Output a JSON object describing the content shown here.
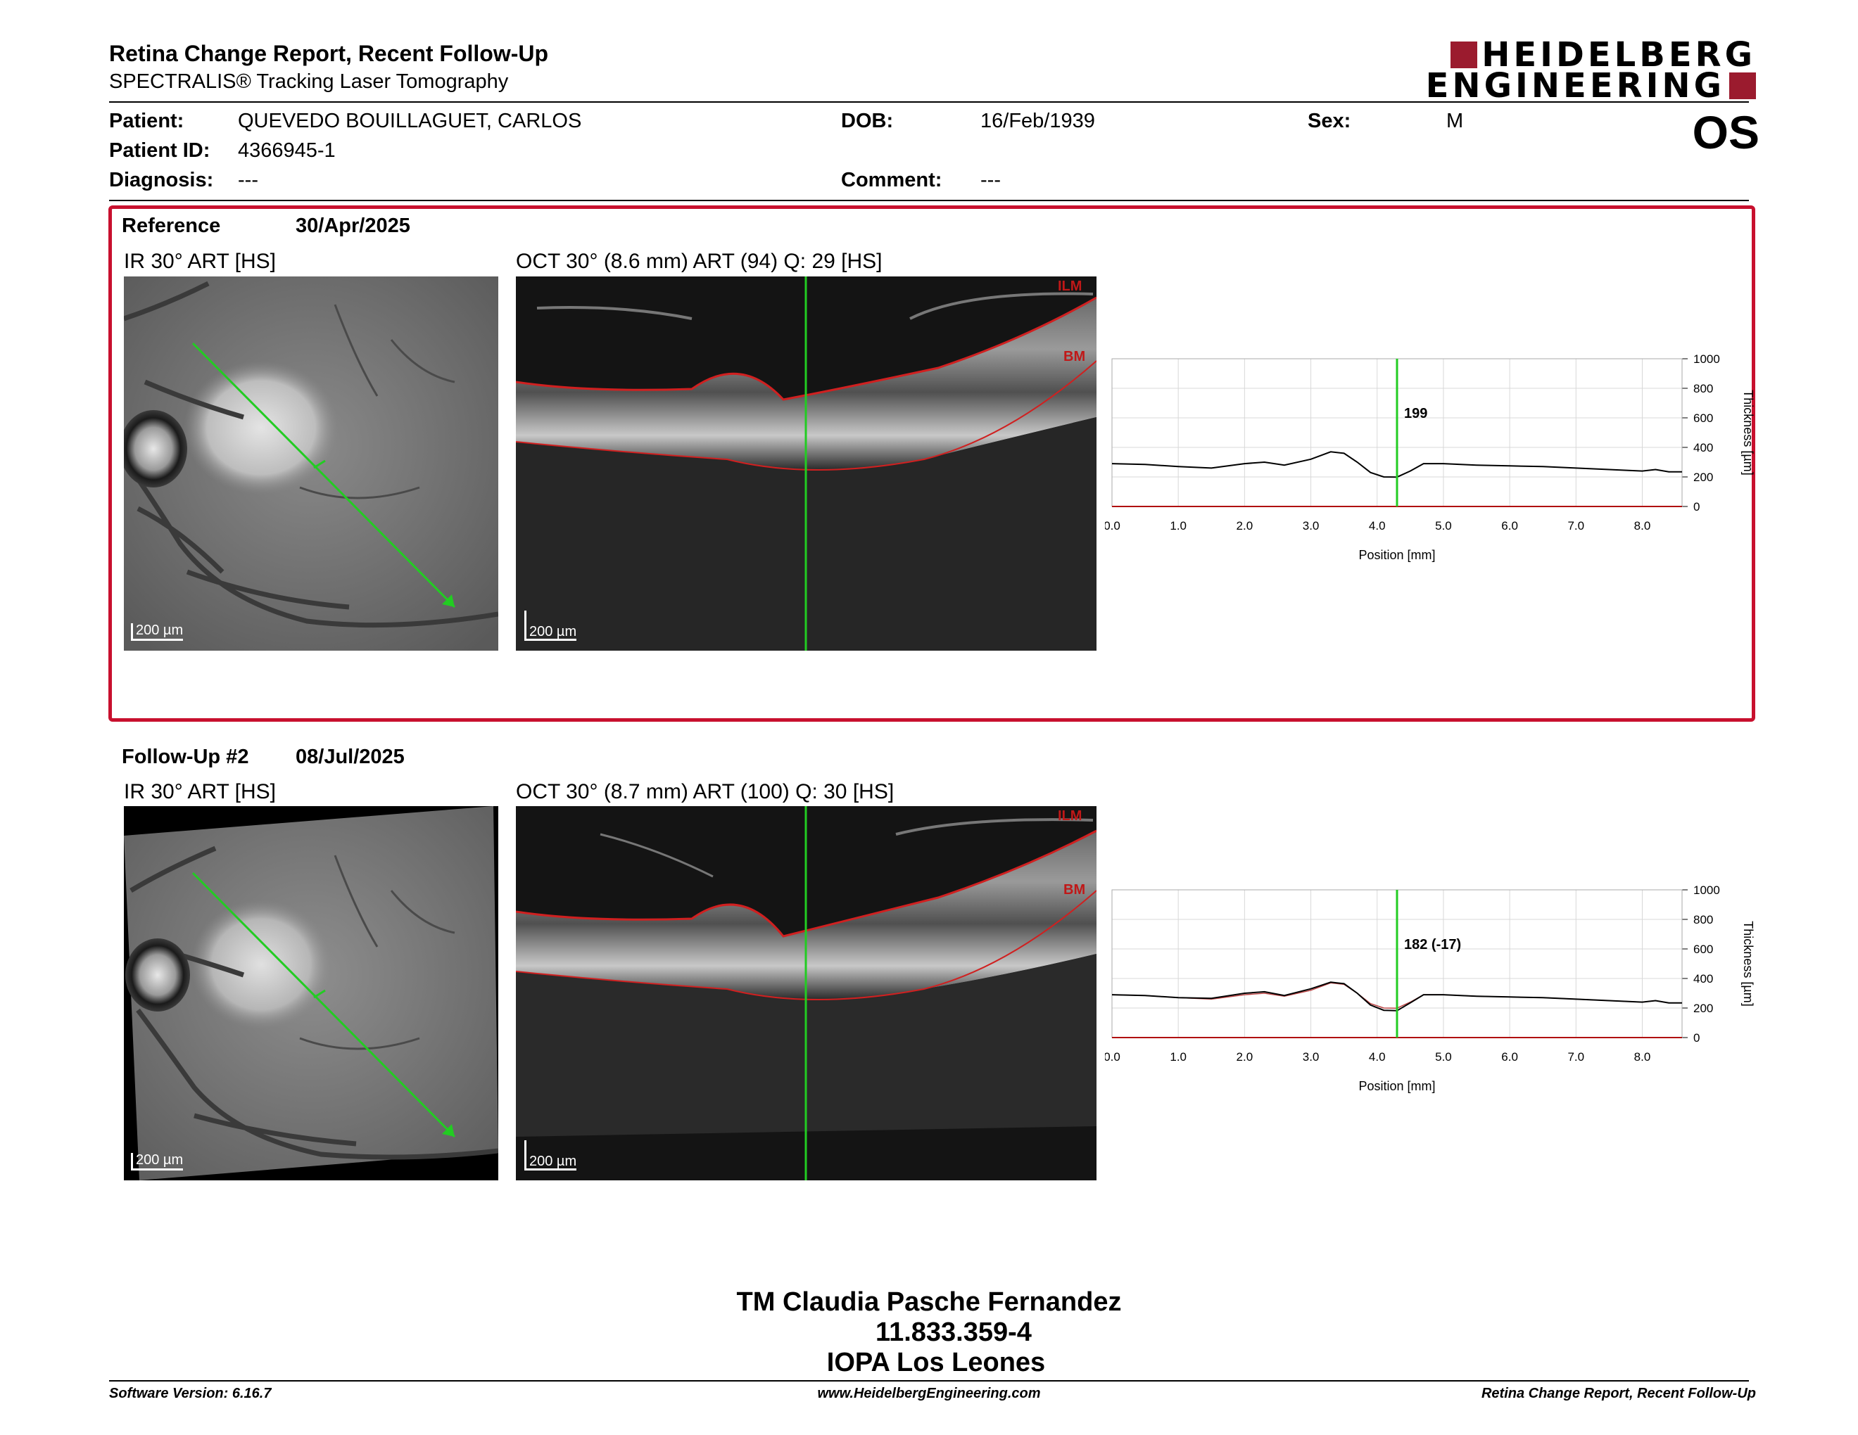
{
  "header": {
    "title": "Retina Change Report, Recent Follow-Up",
    "subtitle": "SPECTRALIS® Tracking Laser Tomography",
    "logo_line1": "HEIDELBERG",
    "logo_line2": "ENGINEERING",
    "eye": "OS"
  },
  "patient": {
    "name_label": "Patient:",
    "name": "QUEVEDO BOUILLAGUET, CARLOS",
    "id_label": "Patient ID:",
    "id": "4366945-1",
    "diagnosis_label": "Diagnosis:",
    "diagnosis": "---",
    "dob_label": "DOB:",
    "dob": "16/Feb/1939",
    "comment_label": "Comment:",
    "comment": "---",
    "sex_label": "Sex:",
    "sex": "M"
  },
  "reference": {
    "label": "Reference",
    "date": "30/Apr/2025",
    "ir_caption": "IR 30° ART [HS]",
    "oct_caption": "OCT 30° (8.6 mm) ART (94) Q: 29 [HS]",
    "scale_ir": "200 µm",
    "scale_oct": "200 µm",
    "ilm": "ILM",
    "bm": "BM"
  },
  "followup": {
    "label": "Follow-Up #2",
    "date": "08/Jul/2025",
    "ir_caption": "IR 30° ART [HS]",
    "oct_caption": "OCT 30° (8.7 mm) ART (100) Q: 30 [HS]",
    "scale_ir": "200 µm",
    "scale_oct": "200 µm",
    "ilm": "ILM",
    "bm": "BM"
  },
  "signature": {
    "line1": "TM Claudia Pasche Fernandez",
    "line2": "11.833.359-4",
    "line3": "IOPA Los Leones"
  },
  "footer": {
    "left": "Software Version: 6.16.7",
    "center": "www.HeidelbergEngineering.com",
    "right": "Retina Change Report, Recent Follow-Up"
  },
  "colors": {
    "accent": "#c8102e",
    "brand": "#9b1b2e",
    "marker": "#22cc22"
  },
  "chart_data": [
    {
      "type": "line",
      "xlabel": "Position [mm]",
      "ylabel": "Thickness [µm]",
      "xlim": [
        0,
        8.6
      ],
      "ylim": [
        0,
        1000
      ],
      "xticks": [
        "0.0",
        "1.0",
        "2.0",
        "3.0",
        "4.0",
        "5.0",
        "6.0",
        "7.0",
        "8.0"
      ],
      "yticks": [
        "0",
        "200",
        "400",
        "600",
        "800",
        "1000"
      ],
      "marker_x": 4.3,
      "marker_label": "199",
      "series": [
        {
          "x": [
            0,
            0.5,
            1.0,
            1.5,
            2.0,
            2.3,
            2.6,
            3.0,
            3.3,
            3.5,
            3.7,
            3.9,
            4.1,
            4.3,
            4.5,
            4.7,
            5.0,
            5.5,
            6.0,
            6.5,
            7.0,
            7.5,
            8.0,
            8.2,
            8.4,
            8.6
          ],
          "values": [
            290,
            285,
            270,
            260,
            290,
            300,
            280,
            320,
            370,
            360,
            300,
            230,
            200,
            199,
            240,
            290,
            290,
            280,
            275,
            270,
            260,
            250,
            240,
            250,
            235,
            235
          ]
        }
      ]
    },
    {
      "type": "line",
      "xlabel": "Position [mm]",
      "ylabel": "Thickness [µm]",
      "xlim": [
        0,
        8.6
      ],
      "ylim": [
        0,
        1000
      ],
      "xticks": [
        "0.0",
        "1.0",
        "2.0",
        "3.0",
        "4.0",
        "5.0",
        "6.0",
        "7.0",
        "8.0"
      ],
      "yticks": [
        "0",
        "200",
        "400",
        "600",
        "800",
        "1000"
      ],
      "marker_x": 4.3,
      "marker_label": "182 (-17)",
      "series": [
        {
          "x": [
            0,
            0.5,
            1.0,
            1.5,
            2.0,
            2.3,
            2.6,
            3.0,
            3.3,
            3.5,
            3.7,
            3.9,
            4.1,
            4.3,
            4.5,
            4.7,
            5.0,
            5.5,
            6.0,
            6.5,
            7.0,
            7.5,
            8.0,
            8.2,
            8.4,
            8.6
          ],
          "values": [
            290,
            285,
            270,
            265,
            300,
            310,
            285,
            330,
            375,
            365,
            300,
            220,
            185,
            182,
            235,
            290,
            290,
            280,
            275,
            270,
            260,
            250,
            240,
            250,
            235,
            235
          ]
        },
        {
          "x": [
            0,
            0.5,
            1.0,
            1.5,
            2.0,
            2.3,
            2.6,
            3.0,
            3.3,
            3.5,
            3.7,
            3.9,
            4.1,
            4.3,
            4.5,
            4.7,
            5.0,
            5.5,
            6.0,
            6.5,
            7.0,
            7.5,
            8.0,
            8.2,
            8.4,
            8.6
          ],
          "values": [
            290,
            285,
            270,
            260,
            290,
            300,
            280,
            320,
            370,
            360,
            300,
            230,
            200,
            199,
            240,
            290,
            290,
            280,
            275,
            270,
            260,
            250,
            240,
            250,
            235,
            235
          ]
        }
      ]
    }
  ]
}
